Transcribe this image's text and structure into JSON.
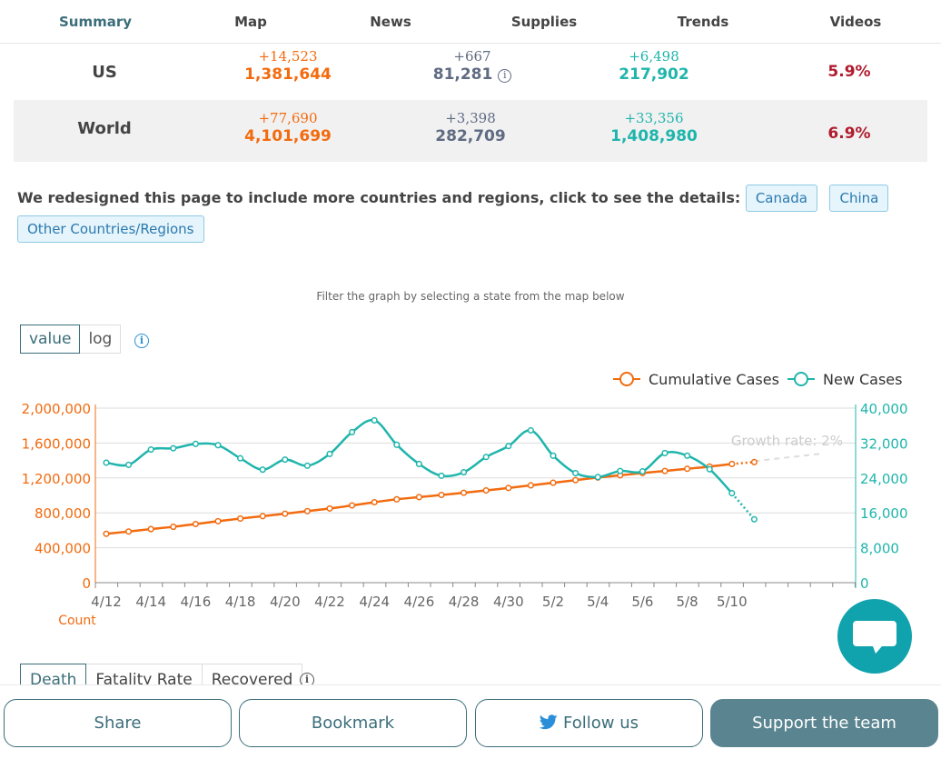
{
  "nav": {
    "tabs": [
      {
        "label": "Summary",
        "active": true
      },
      {
        "label": "Map"
      },
      {
        "label": "News"
      },
      {
        "label": "Supplies"
      },
      {
        "label": "Trends"
      },
      {
        "label": "Videos"
      }
    ]
  },
  "stats": {
    "us": {
      "label": "US",
      "cases_delta": "+14,523",
      "cases": "1,381,644",
      "deaths_delta": "+667",
      "deaths": "81,281",
      "recovered_delta": "+6,498",
      "recovered": "217,902",
      "fatality": "5.9%"
    },
    "world": {
      "label": "World",
      "cases_delta": "+77,690",
      "cases": "4,101,699",
      "deaths_delta": "+3,398",
      "deaths": "282,709",
      "recovered_delta": "+33,356",
      "recovered": "1,408,980",
      "fatality": "6.9%"
    }
  },
  "notice": {
    "text": "We redesigned this page to include more countries and regions, click to see the details:",
    "links": [
      "Canada",
      "China",
      "Other Countries/Regions"
    ]
  },
  "filter_hint": "Filter the graph by selecting a state from the map below",
  "scale_toggle": {
    "options": [
      "value",
      "log"
    ],
    "selected": "value"
  },
  "chart_data": {
    "type": "line",
    "x": [
      "4/12",
      "4/13",
      "4/14",
      "4/15",
      "4/16",
      "4/17",
      "4/18",
      "4/19",
      "4/20",
      "4/21",
      "4/22",
      "4/23",
      "4/24",
      "4/25",
      "4/26",
      "4/27",
      "4/28",
      "4/29",
      "4/30",
      "5/1",
      "5/2",
      "5/3",
      "5/4",
      "5/5",
      "5/6",
      "5/7",
      "5/8",
      "5/9",
      "5/10",
      "5/11"
    ],
    "x_tick_labels": [
      "4/12",
      "4/14",
      "4/16",
      "4/18",
      "4/20",
      "4/22",
      "4/24",
      "4/26",
      "4/28",
      "4/30",
      "5/2",
      "5/4",
      "5/6",
      "5/8",
      "5/10"
    ],
    "series": [
      {
        "name": "Cumulative Cases",
        "axis": "left",
        "color": "#f26b0f",
        "values": [
          560000,
          586000,
          614000,
          640000,
          672000,
          704000,
          735000,
          762000,
          790000,
          820000,
          850000,
          885000,
          922000,
          955000,
          980000,
          1005000,
          1030000,
          1057000,
          1085000,
          1115000,
          1145000,
          1175000,
          1205000,
          1230000,
          1256000,
          1280000,
          1305000,
          1330000,
          1360000,
          1381644
        ]
      },
      {
        "name": "New Cases",
        "axis": "right",
        "color": "#1fb5ac",
        "values": [
          27500,
          27000,
          30500,
          30800,
          31800,
          31500,
          28500,
          25900,
          28200,
          26800,
          29500,
          34500,
          37200,
          31600,
          27200,
          24500,
          25300,
          28800,
          31300,
          34900,
          29100,
          25100,
          24200,
          25600,
          25500,
          29700,
          29100,
          26000,
          20500,
          14523
        ]
      }
    ],
    "left_axis": {
      "ticks": [
        "0",
        "400,000",
        "800,000",
        "1,200,000",
        "1,600,000",
        "2,000,000"
      ],
      "ylim": [
        0,
        2000000
      ],
      "label": "Count"
    },
    "right_axis": {
      "ticks": [
        "0",
        "8,000",
        "16,000",
        "24,000",
        "32,000",
        "40,000"
      ],
      "ylim": [
        0,
        40000
      ]
    },
    "annotation": "Growth rate: 2%",
    "legend_position": "top-right",
    "grid": true
  },
  "sub_tabs": {
    "items": [
      "Death",
      "Fatality Rate",
      "Recovered"
    ],
    "selected": "Death"
  },
  "footer": {
    "share": "Share",
    "bookmark": "Bookmark",
    "follow": "Follow us",
    "support": "Support the team"
  },
  "colors": {
    "accent": "#3b6e7a",
    "orange": "#f26b0f",
    "teal": "#1fb5ac",
    "gray": "#5f6b82",
    "red": "#b01c2e"
  }
}
